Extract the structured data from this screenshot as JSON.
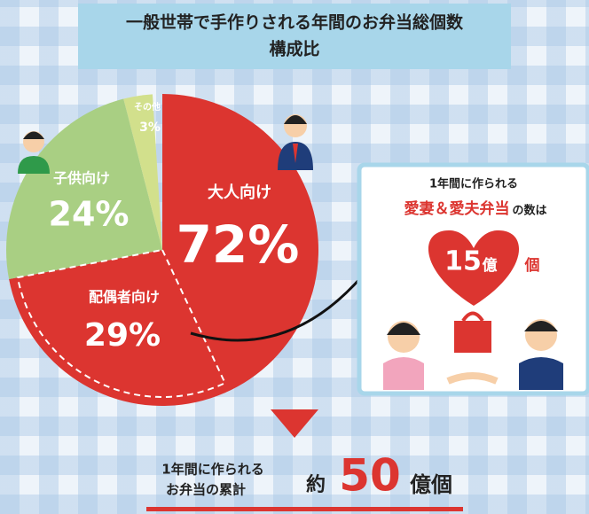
{
  "chart_data": {
    "type": "pie",
    "title": "一般世帯で手作りされる年間のお弁当総個数",
    "subtitle": "構成比",
    "categories": [
      "大人向け",
      "子供向け",
      "その他"
    ],
    "values": [
      72,
      24,
      3
    ],
    "value_labels": [
      "72%",
      "24%",
      "3%"
    ],
    "colors": [
      "#dc3530",
      "#a9cf83",
      "#d2e08c"
    ],
    "sub_segment": {
      "name": "配偶者向け",
      "value": 29,
      "value_label": "29%"
    }
  },
  "callout": {
    "line1": "1年間に作られる",
    "highlight": "愛妻＆愛夫弁当",
    "suffix": "の数は",
    "number": 15,
    "unit1": "億",
    "unit2": "個"
  },
  "total": {
    "line1": "1年間に作られる",
    "line2": "お弁当の累計",
    "prefix": "約",
    "number": 50,
    "unit": "億個"
  }
}
